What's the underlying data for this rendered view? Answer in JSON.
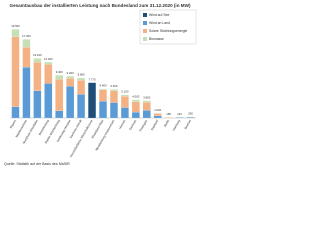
{
  "chart_data": {
    "type": "stacked_bar",
    "title": "Gesamtausbau der installierten Leistung nach Bundesland zum 31.12.2020 (in MW)",
    "footnote": "Quelle: Statistik auf der Basis des MaStR",
    "categories": [
      "Bayern",
      "Niedersachsen",
      "Nordrhein-Westfalen",
      "Brandenburg",
      "Baden-Württemberg",
      "Schleswig-Holstein",
      "Sachsen-Anhalt",
      "Ausschließliche Wirtschaftszone",
      "Rheinland-Pfalz",
      "Mecklenburg-Vorpommern",
      "Hessen",
      "Sachsen",
      "Thüringen",
      "Saarland",
      "Berlin",
      "Hamburg",
      "Bremen"
    ],
    "series": [
      {
        "name": "Wind auf See",
        "color": "#1f4e79",
        "values": [
          0,
          0,
          0,
          0,
          0,
          0,
          0,
          7770,
          0,
          0,
          0,
          0,
          0,
          0,
          0,
          0,
          0
        ]
      },
      {
        "name": "Wind an Land",
        "color": "#5b9bd5",
        "values": [
          2500,
          11200,
          6000,
          7600,
          1600,
          7000,
          5200,
          0,
          3700,
          3400,
          2300,
          1300,
          1700,
          500,
          10,
          120,
          200
        ]
      },
      {
        "name": "Solare Strahlungsenergie",
        "color": "#f4b183",
        "values": [
          15400,
          4400,
          6300,
          4200,
          6900,
          1700,
          3100,
          0,
          2500,
          2600,
          2500,
          2300,
          1800,
          500,
          130,
          50,
          50
        ]
      },
      {
        "name": "Biomasse",
        "color": "#c5e0b4",
        "values": [
          1600,
          1700,
          800,
          500,
          900,
          500,
          500,
          0,
          200,
          300,
          300,
          400,
          300,
          20,
          40,
          40,
          10
        ]
      }
    ],
    "totals": [
      19500,
      17300,
      13100,
      12300,
      9400,
      9200,
      8800,
      7770,
      6400,
      6300,
      5100,
      4000,
      3800,
      1020,
      180,
      210,
      260
    ],
    "value_labels": [
      "19.500",
      "17.300",
      "13.100",
      "12.300",
      "9.400",
      "9.200",
      "8.800",
      "7.770",
      "6.400",
      "6.300",
      "5.100",
      "4.000",
      "3.800",
      "1.020",
      "180",
      "210",
      "260"
    ],
    "ylim": [
      0,
      22000
    ],
    "legend": "top-right"
  }
}
